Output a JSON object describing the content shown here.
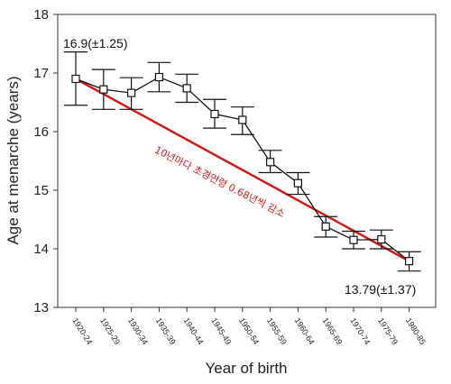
{
  "chart_data": {
    "type": "line",
    "xlabel": "Year of birth",
    "ylabel": "Age at menarche (years)",
    "ylim": [
      13,
      18
    ],
    "yticks": [
      "13",
      "14",
      "15",
      "16",
      "17",
      "18"
    ],
    "categories": [
      "1920-24",
      "1925-29",
      "1930-34",
      "1935-39",
      "1940-44",
      "1945-49",
      "1950-54",
      "1955-59",
      "1960-64",
      "1965-69",
      "1970-74",
      "1975-79",
      "1980-85"
    ],
    "series": [
      {
        "values": [
          16.9,
          16.72,
          16.66,
          16.93,
          16.74,
          16.3,
          16.2,
          15.48,
          15.12,
          14.38,
          14.15,
          14.16,
          13.79
        ],
        "err_low": [
          16.45,
          16.38,
          16.38,
          16.68,
          16.5,
          16.06,
          15.95,
          15.3,
          14.93,
          14.2,
          14.0,
          14.0,
          13.62
        ],
        "err_high": [
          17.36,
          17.06,
          16.92,
          17.18,
          16.98,
          16.55,
          16.42,
          15.68,
          15.3,
          14.55,
          14.3,
          14.32,
          13.95
        ],
        "color": "#111111"
      }
    ],
    "trend": {
      "from": 16.9,
      "to": 13.79,
      "color": "#d21a1a"
    },
    "annotations": {
      "start_label": "16.9(±1.25)",
      "end_label": "13.79(±1.37)",
      "trend_label": "10년마다 초경연령 0.68년씩 감소"
    },
    "grid": false
  }
}
